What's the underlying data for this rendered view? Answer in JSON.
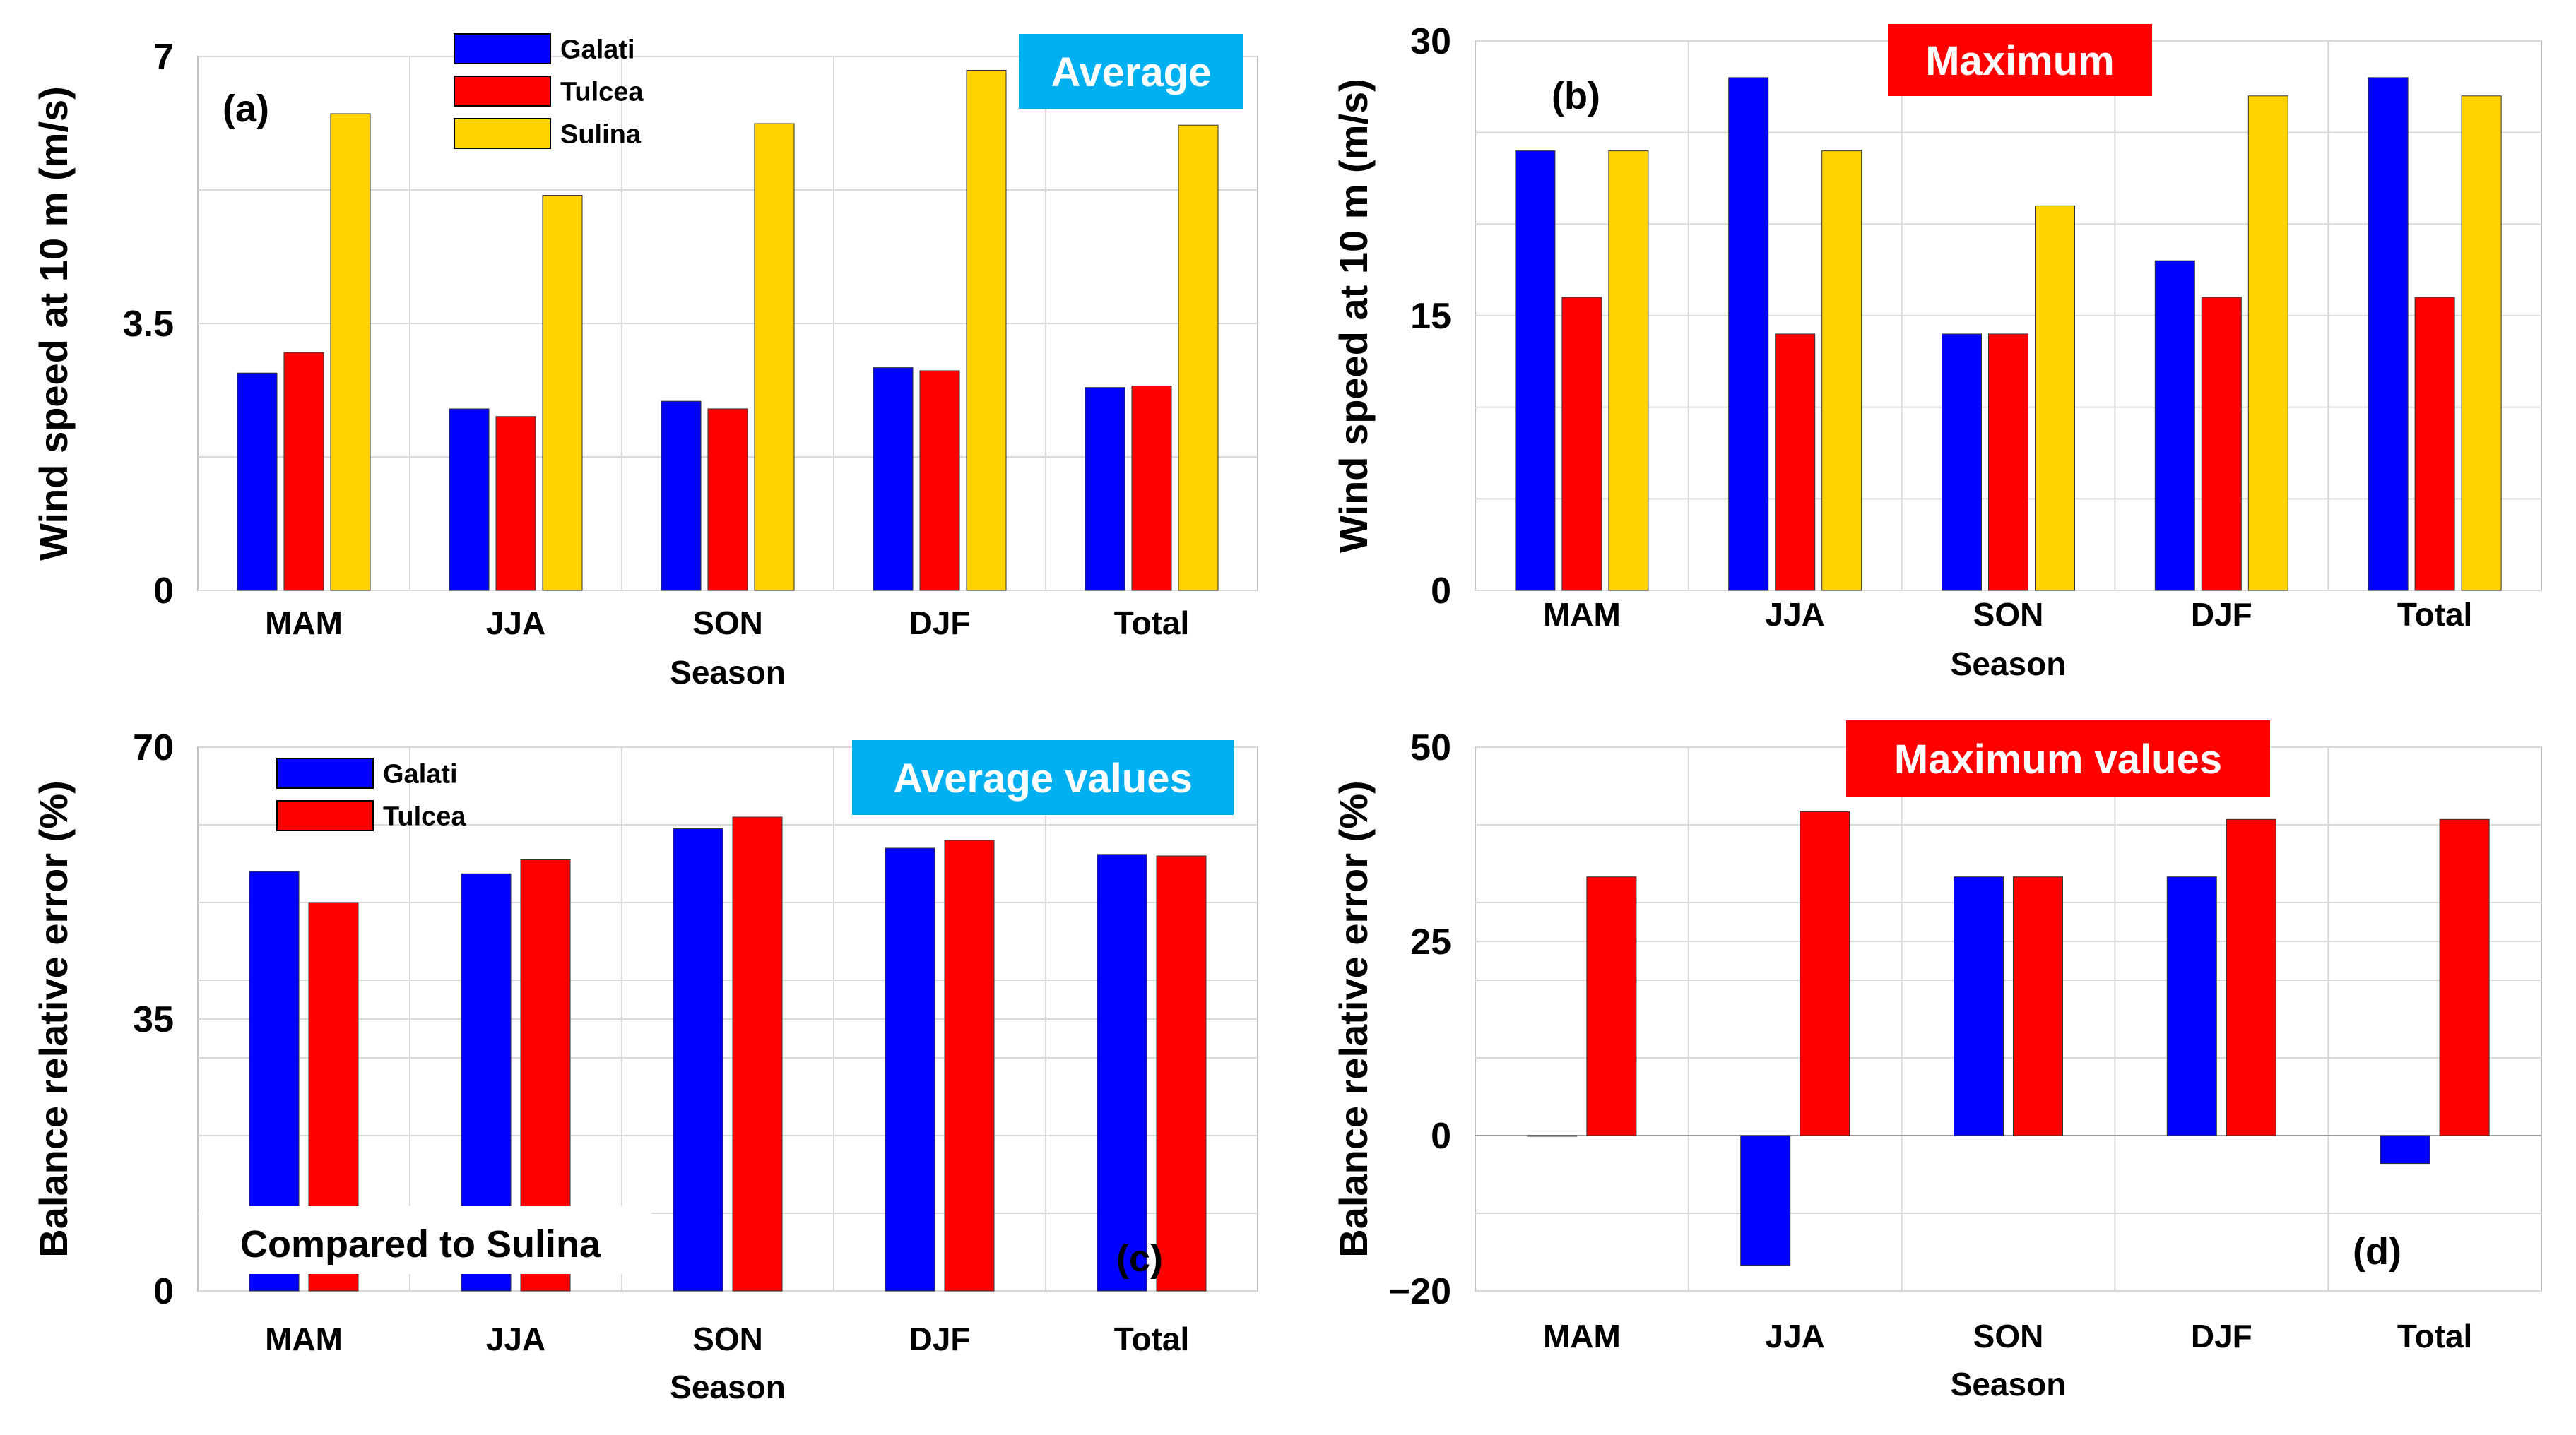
{
  "colors": {
    "Galati": "#0000ff",
    "Tulcea": "#ff0000",
    "Sulina": "#ffd200",
    "grid": "#d9d9d9",
    "axis": "#bfbfbf"
  },
  "chart_data": [
    {
      "type": "bar",
      "panel": "a",
      "panel_label": "(a)",
      "title": "Average",
      "title_bg": "#00b0f0",
      "ylabel": "Wind speed at 10 m (m/s)",
      "xlabel": "Season",
      "categories": [
        "MAM",
        "JJA",
        "SON",
        "DJF",
        "Total"
      ],
      "ylim": [
        0,
        7
      ],
      "yticks": [
        0,
        3.5,
        7
      ],
      "ytick_labels": [
        "0",
        "3.5",
        "7"
      ],
      "minor_yticks": [
        1.75,
        5.25
      ],
      "series": [
        {
          "name": "Galati",
          "values": [
            2.85,
            2.38,
            2.48,
            2.92,
            2.66
          ]
        },
        {
          "name": "Tulcea",
          "values": [
            3.12,
            2.28,
            2.38,
            2.88,
            2.68
          ]
        },
        {
          "name": "Sulina",
          "values": [
            6.25,
            5.18,
            6.12,
            6.82,
            6.1
          ]
        }
      ],
      "legend": [
        "Galati",
        "Tulcea",
        "Sulina"
      ],
      "legend_position": "top-center"
    },
    {
      "type": "bar",
      "panel": "b",
      "panel_label": "(b)",
      "title": "Maximum",
      "title_bg": "#ff0000",
      "ylabel": "Wind speed at 10 m (m/s)",
      "xlabel": "Season",
      "categories": [
        "MAM",
        "JJA",
        "SON",
        "DJF",
        "Total"
      ],
      "ylim": [
        0,
        30
      ],
      "yticks": [
        0,
        15,
        30
      ],
      "ytick_labels": [
        "0",
        "15",
        "30"
      ],
      "minor_yticks": [
        5,
        10,
        20,
        25
      ],
      "series": [
        {
          "name": "Galati",
          "values": [
            24,
            28,
            14,
            18,
            28
          ]
        },
        {
          "name": "Tulcea",
          "values": [
            16,
            14,
            14,
            16,
            16
          ]
        },
        {
          "name": "Sulina",
          "values": [
            24,
            24,
            21,
            27,
            27
          ]
        }
      ]
    },
    {
      "type": "bar",
      "panel": "c",
      "panel_label": "(c)",
      "title": "Average values",
      "title_bg": "#00b0f0",
      "ylabel": "Balance relative error (%)",
      "xlabel": "Season",
      "categories": [
        "MAM",
        "JJA",
        "SON",
        "DJF",
        "Total"
      ],
      "ylim": [
        0,
        70
      ],
      "yticks": [
        0,
        35,
        70
      ],
      "ytick_labels": [
        "0",
        "35",
        "70"
      ],
      "minor_yticks": [
        10,
        20,
        30,
        40,
        50,
        60
      ],
      "series": [
        {
          "name": "Galati",
          "values": [
            54,
            53.7,
            59.5,
            57,
            56.2
          ]
        },
        {
          "name": "Tulcea",
          "values": [
            50,
            55.5,
            61,
            58,
            56
          ]
        }
      ],
      "legend": [
        "Galati",
        "Tulcea"
      ],
      "legend_position": "top-left",
      "annotation": "Compared to Sulina"
    },
    {
      "type": "bar",
      "panel": "d",
      "panel_label": "(d)",
      "title": "Maximum values",
      "title_bg": "#ff0000",
      "ylabel": "Balance relative error (%)",
      "xlabel": "Season",
      "categories": [
        "MAM",
        "JJA",
        "SON",
        "DJF",
        "Total"
      ],
      "ylim": [
        -20,
        50
      ],
      "yticks": [
        -20,
        0,
        25,
        50
      ],
      "ytick_labels": [
        "−20",
        "0",
        "25",
        "50"
      ],
      "minor_yticks": [
        -10,
        10,
        20,
        30,
        40
      ],
      "series": [
        {
          "name": "Galati",
          "values": [
            0,
            -16.7,
            33.3,
            33.3,
            -3.6
          ]
        },
        {
          "name": "Tulcea",
          "values": [
            33.3,
            41.7,
            33.3,
            40.7,
            40.7
          ]
        }
      ]
    }
  ]
}
